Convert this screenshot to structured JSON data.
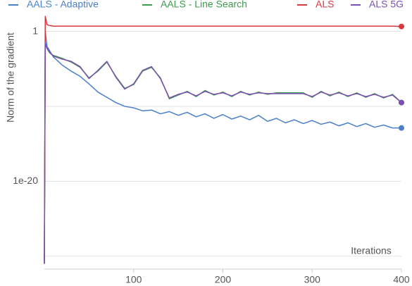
{
  "chart_data": {
    "type": "line",
    "y_label": "Norm of the gradient",
    "x_label": "Iterations",
    "log_y": true,
    "xlim": [
      0,
      400
    ],
    "xticks": [
      100,
      200,
      300,
      400
    ],
    "ylim": [
      1e-32,
      10000.0
    ],
    "yticks": [
      1,
      1e-20
    ],
    "ygrid": [
      1e-30,
      1e-20,
      1e-10,
      1
    ],
    "legend": "top",
    "end_markers": true,
    "x": [
      0,
      1,
      3,
      6,
      10,
      20,
      30,
      40,
      50,
      60,
      70,
      80,
      90,
      100,
      110,
      120,
      130,
      140,
      150,
      160,
      170,
      180,
      190,
      200,
      210,
      220,
      230,
      240,
      250,
      260,
      270,
      280,
      290,
      300,
      310,
      320,
      330,
      340,
      350,
      360,
      370,
      380,
      390,
      400
    ],
    "series": [
      {
        "name": "AALS - Adaptive",
        "color": "#4a7fca",
        "values": [
          1e-31,
          1,
          0.01,
          0.0025,
          0.0004,
          3.2e-05,
          5e-06,
          1e-06,
          1e-07,
          8e-09,
          1.6e-09,
          3.2e-10,
          1e-10,
          6.3e-11,
          2.5e-11,
          3.2e-11,
          1e-11,
          2e-11,
          6.3e-12,
          1.6e-11,
          4e-12,
          1e-11,
          2.5e-12,
          8e-12,
          2e-12,
          5e-12,
          1.6e-12,
          6.3e-12,
          1e-12,
          2.5e-12,
          6.3e-13,
          1.6e-12,
          5e-13,
          1.3e-12,
          4e-13,
          8e-13,
          2.5e-13,
          6.3e-13,
          2e-13,
          5e-13,
          1.6e-13,
          3.2e-13,
          1.3e-13,
          1.3e-13
        ]
      },
      {
        "name": "AALS - Line Search",
        "color": "#3c9a4c",
        "values": [
          1e-31,
          0.02,
          0.005,
          0.0013,
          0.00063,
          0.00025,
          8e-05,
          1.6e-05,
          6.3e-07,
          5e-06,
          8e-05,
          1e-06,
          2.5e-08,
          8e-08,
          5e-06,
          1.6e-05,
          6.3e-07,
          1e-09,
          3.2e-09,
          1e-08,
          2e-09,
          1.3e-08,
          3.2e-09,
          8e-09,
          2e-09,
          1e-08,
          3.2e-09,
          8e-09,
          4e-09,
          6.3e-09,
          6.3e-09,
          6.3e-09,
          6.3e-09,
          1.6e-09,
          1e-08,
          2.5e-09,
          8e-09,
          2e-09,
          6.3e-09,
          1.6e-09,
          5e-09,
          1.3e-09,
          4e-09,
          3.2e-10
        ]
      },
      {
        "name": "ALS",
        "color": "#d8383e",
        "values": [
          1e-31,
          100,
          8,
          6,
          5,
          5,
          5,
          5,
          5,
          5,
          5,
          5,
          5,
          5,
          5,
          5,
          5,
          5,
          5,
          5,
          5,
          5,
          5,
          5,
          5,
          5,
          5,
          5,
          5,
          5,
          5,
          5,
          5,
          5,
          5,
          5,
          5,
          5,
          5,
          5,
          5,
          5,
          5,
          4.5
        ]
      },
      {
        "name": "ALS 5G",
        "color": "#7b4fb2",
        "values": [
          1e-31,
          0.03,
          0.006,
          0.0016,
          0.0005,
          0.0002,
          0.0001,
          2e-05,
          5e-07,
          6.3e-06,
          0.0001,
          8e-07,
          2e-08,
          1e-07,
          6.3e-06,
          2e-05,
          5e-07,
          1.3e-09,
          4e-09,
          8e-09,
          2.5e-09,
          1e-08,
          4e-09,
          6.3e-09,
          2.5e-09,
          8e-09,
          4e-09,
          6.3e-09,
          5e-09,
          5e-09,
          5e-09,
          5e-09,
          5e-09,
          2e-09,
          8e-09,
          3.2e-09,
          6.3e-09,
          2.5e-09,
          5e-09,
          2e-09,
          4e-09,
          1.6e-09,
          3.2e-09,
          3.2e-10
        ]
      }
    ]
  }
}
